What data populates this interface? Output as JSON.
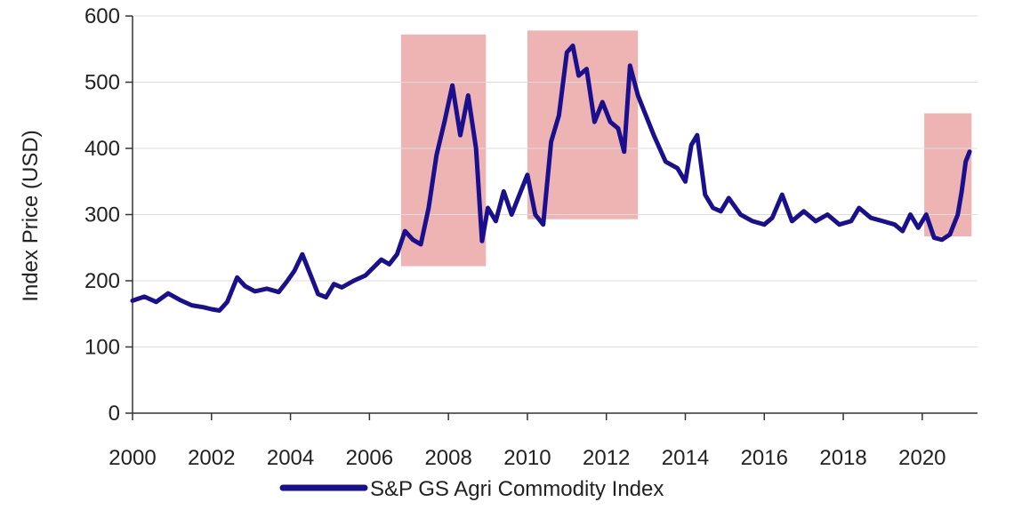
{
  "chart_data": {
    "type": "line",
    "title": "",
    "xlabel": "",
    "ylabel": "Index Price (USD)",
    "xlim": [
      2000,
      2021.4
    ],
    "ylim": [
      0,
      600
    ],
    "grid": true,
    "x_ticks": [
      2000,
      2002,
      2004,
      2006,
      2008,
      2010,
      2012,
      2014,
      2016,
      2018,
      2020
    ],
    "x_tick_labels": [
      "2000",
      "2002",
      "2004",
      "2006",
      "2008",
      "2010",
      "2012",
      "2014",
      "2016",
      "2018",
      "2020"
    ],
    "y_ticks": [
      0,
      100,
      200,
      300,
      400,
      500,
      600
    ],
    "y_tick_labels": [
      "0",
      "100",
      "200",
      "300",
      "400",
      "500",
      "600"
    ],
    "legend": {
      "position": "bottom-center",
      "entries": [
        "S&P GS Agri Commodity Index"
      ]
    },
    "highlight_regions": [
      {
        "x0": 2006.8,
        "x1": 2008.95,
        "y0": 222,
        "y1": 572
      },
      {
        "x0": 2010.0,
        "x1": 2012.8,
        "y0": 293,
        "y1": 578
      },
      {
        "x0": 2020.05,
        "x1": 2021.25,
        "y0": 267,
        "y1": 453
      }
    ],
    "series": [
      {
        "name": "S&P GS Agri Commodity Index",
        "color": "#1a0f8c",
        "x": [
          2000.0,
          2000.3,
          2000.6,
          2000.9,
          2001.2,
          2001.5,
          2001.8,
          2002.0,
          2002.2,
          2002.4,
          2002.65,
          2002.85,
          2003.1,
          2003.4,
          2003.7,
          2003.9,
          2004.1,
          2004.3,
          2004.5,
          2004.7,
          2004.9,
          2005.1,
          2005.3,
          2005.6,
          2005.9,
          2006.1,
          2006.3,
          2006.5,
          2006.7,
          2006.9,
          2007.1,
          2007.3,
          2007.5,
          2007.7,
          2007.9,
          2008.1,
          2008.3,
          2008.5,
          2008.7,
          2008.85,
          2009.0,
          2009.2,
          2009.4,
          2009.6,
          2009.8,
          2010.0,
          2010.2,
          2010.4,
          2010.6,
          2010.8,
          2011.0,
          2011.15,
          2011.3,
          2011.5,
          2011.7,
          2011.9,
          2012.1,
          2012.3,
          2012.45,
          2012.6,
          2012.8,
          2013.0,
          2013.2,
          2013.5,
          2013.8,
          2014.0,
          2014.15,
          2014.3,
          2014.5,
          2014.7,
          2014.9,
          2015.1,
          2015.4,
          2015.7,
          2016.0,
          2016.2,
          2016.45,
          2016.7,
          2017.0,
          2017.3,
          2017.6,
          2017.9,
          2018.2,
          2018.4,
          2018.7,
          2019.0,
          2019.3,
          2019.5,
          2019.7,
          2019.9,
          2020.1,
          2020.3,
          2020.5,
          2020.7,
          2020.9,
          2021.0,
          2021.1,
          2021.2
        ],
        "y": [
          170,
          176,
          168,
          181,
          171,
          163,
          160,
          157,
          155,
          168,
          205,
          192,
          184,
          188,
          183,
          198,
          215,
          240,
          210,
          180,
          175,
          195,
          190,
          200,
          208,
          220,
          232,
          225,
          240,
          275,
          262,
          255,
          310,
          390,
          440,
          495,
          420,
          480,
          400,
          260,
          310,
          290,
          335,
          300,
          330,
          360,
          300,
          285,
          410,
          450,
          545,
          555,
          510,
          520,
          440,
          470,
          440,
          430,
          395,
          525,
          480,
          450,
          420,
          380,
          370,
          350,
          405,
          420,
          330,
          310,
          305,
          325,
          300,
          290,
          285,
          295,
          330,
          290,
          305,
          290,
          300,
          285,
          290,
          310,
          295,
          290,
          285,
          275,
          300,
          280,
          300,
          265,
          262,
          270,
          300,
          335,
          380,
          395
        ]
      }
    ]
  }
}
